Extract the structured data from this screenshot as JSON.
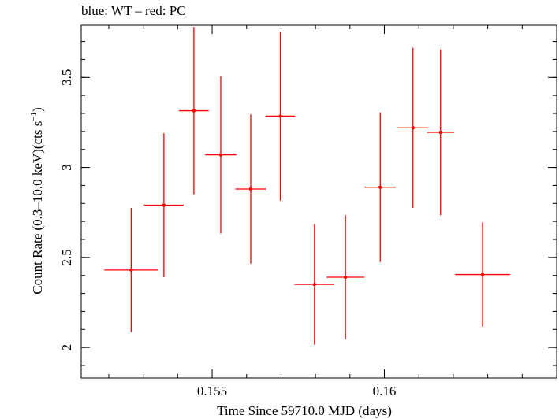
{
  "chart_data": {
    "type": "scatter",
    "title": "blue: WT – red: PC",
    "xlabel": "Time Since 59710.0 MJD (days)",
    "ylabel_main": "Count Rate (0.3–10.0 keV)(cts s",
    "ylabel_sup": "−1",
    "ylabel_close": ")",
    "xlim": [
      0.1512,
      0.165
    ],
    "ylim": [
      1.83,
      3.79
    ],
    "x_ticks": [
      {
        "value": 0.155,
        "label": "0.155"
      },
      {
        "value": 0.16,
        "label": "0.16"
      }
    ],
    "y_ticks": [
      {
        "value": 2,
        "label": "2"
      },
      {
        "value": 2.5,
        "label": "2.5"
      },
      {
        "value": 3,
        "label": "3"
      },
      {
        "value": 3.5,
        "label": "3.5"
      }
    ],
    "x_minor_step": 0.001,
    "y_minor_step": 0.1,
    "series": [
      {
        "name": "PC",
        "color": "#ff0000",
        "points": [
          {
            "x": 0.15265,
            "xerr": 0.00078,
            "y": 2.43,
            "yerr": 0.345
          },
          {
            "x": 0.1536,
            "xerr": 0.00058,
            "y": 2.79,
            "yerr": 0.4
          },
          {
            "x": 0.15447,
            "xerr": 0.00043,
            "y": 3.315,
            "yerr": 0.465
          },
          {
            "x": 0.15525,
            "xerr": 0.00045,
            "y": 3.07,
            "yerr": 0.437
          },
          {
            "x": 0.15612,
            "xerr": 0.00045,
            "y": 2.88,
            "yerr": 0.415
          },
          {
            "x": 0.15698,
            "xerr": 0.00043,
            "y": 3.285,
            "yerr": 0.47
          },
          {
            "x": 0.15797,
            "xerr": 0.00058,
            "y": 2.35,
            "yerr": 0.335
          },
          {
            "x": 0.15887,
            "xerr": 0.00055,
            "y": 2.39,
            "yerr": 0.345
          },
          {
            "x": 0.15988,
            "xerr": 0.00045,
            "y": 2.89,
            "yerr": 0.415
          },
          {
            "x": 0.16083,
            "xerr": 0.00045,
            "y": 3.22,
            "yerr": 0.445
          },
          {
            "x": 0.16163,
            "xerr": 0.0004,
            "y": 3.195,
            "yerr": 0.46
          },
          {
            "x": 0.16285,
            "xerr": 0.0008,
            "y": 2.405,
            "yerr": 0.29
          }
        ]
      }
    ]
  }
}
